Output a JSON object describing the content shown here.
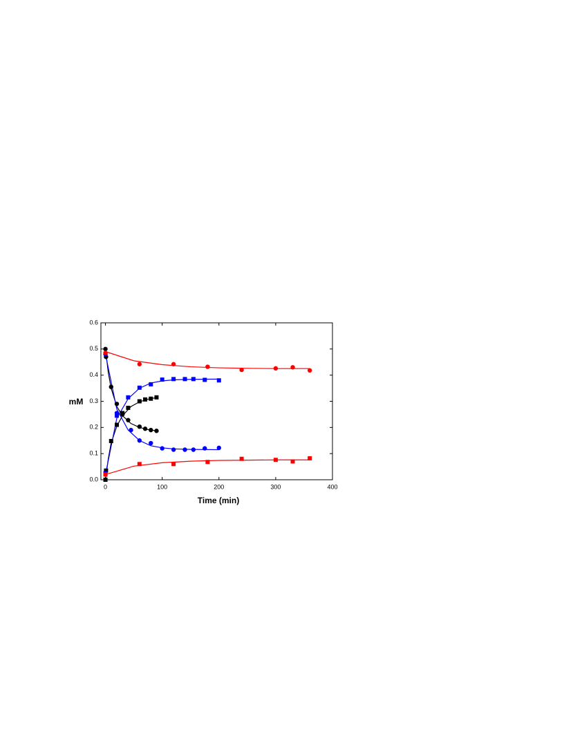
{
  "chart_data": {
    "type": "scatter",
    "x_label": "Time (min)",
    "y_label": "mM",
    "xlim": [
      -8,
      400
    ],
    "xticks": [
      0,
      100,
      200,
      300,
      400
    ],
    "ylim": [
      0,
      0.6
    ],
    "yticks": [
      {
        "value": 0,
        "label": "0.0"
      },
      0.1,
      0.2,
      0.3,
      0.4,
      0.5,
      0.6
    ],
    "series": [
      {
        "color": "#000000",
        "marker": "circle",
        "x": [
          0,
          1,
          10,
          20,
          30,
          40,
          60,
          70,
          80,
          90
        ],
        "values": [
          0.5,
          0.47,
          0.355,
          0.29,
          0.25,
          0.228,
          0.203,
          0.195,
          0.19,
          0.187
        ]
      },
      {
        "color": "#000000",
        "marker": "square",
        "x": [
          0,
          1,
          10,
          20,
          30,
          40,
          60,
          70,
          80,
          90
        ],
        "values": [
          0,
          0.035,
          0.148,
          0.21,
          0.255,
          0.275,
          0.3,
          0.307,
          0.31,
          0.315
        ]
      },
      {
        "color": "#0000ff",
        "marker": "circle",
        "x": [
          0,
          20,
          45,
          60,
          80,
          100,
          120,
          140,
          155,
          175,
          200
        ],
        "values": [
          0.48,
          0.255,
          0.19,
          0.15,
          0.14,
          0.12,
          0.115,
          0.115,
          0.115,
          0.12,
          0.122
        ]
      },
      {
        "color": "#0000ff",
        "marker": "square",
        "x": [
          0,
          20,
          40,
          60,
          80,
          100,
          120,
          140,
          155,
          175,
          200
        ],
        "values": [
          0.025,
          0.245,
          0.315,
          0.352,
          0.365,
          0.383,
          0.385,
          0.385,
          0.385,
          0.382,
          0.38
        ]
      },
      {
        "color": "#ff0000",
        "marker": "circle",
        "x": [
          0,
          60,
          120,
          180,
          240,
          300,
          330,
          360
        ],
        "values": [
          0.485,
          0.442,
          0.442,
          0.432,
          0.42,
          0.426,
          0.43,
          0.418
        ]
      },
      {
        "color": "#ff0000",
        "marker": "square",
        "x": [
          0,
          60,
          120,
          180,
          240,
          300,
          330,
          360
        ],
        "values": [
          0.02,
          0.06,
          0.06,
          0.068,
          0.08,
          0.076,
          0.07,
          0.082
        ]
      },
      {
        "color": "#000000",
        "marker": "line",
        "x": [
          0,
          5,
          10,
          20,
          30,
          45,
          60,
          75,
          90
        ],
        "values": [
          0.5,
          0.41,
          0.35,
          0.28,
          0.245,
          0.215,
          0.2,
          0.192,
          0.187
        ]
      },
      {
        "color": "#000000",
        "marker": "line",
        "x": [
          0,
          5,
          10,
          20,
          30,
          45,
          60,
          75,
          90
        ],
        "values": [
          0,
          0.08,
          0.14,
          0.205,
          0.245,
          0.28,
          0.298,
          0.308,
          0.314
        ]
      },
      {
        "color": "#0000ff",
        "marker": "line",
        "x": [
          0,
          20,
          40,
          60,
          80,
          100,
          120,
          150,
          200
        ],
        "values": [
          0.48,
          0.27,
          0.19,
          0.15,
          0.13,
          0.122,
          0.118,
          0.116,
          0.115
        ]
      },
      {
        "color": "#0000ff",
        "marker": "line",
        "x": [
          0,
          20,
          40,
          60,
          80,
          100,
          120,
          150,
          200
        ],
        "values": [
          0.02,
          0.235,
          0.31,
          0.35,
          0.37,
          0.378,
          0.382,
          0.384,
          0.385
        ]
      },
      {
        "color": "#ff0000",
        "marker": "line",
        "x": [
          0,
          50,
          100,
          150,
          200,
          250,
          300,
          360
        ],
        "values": [
          0.49,
          0.455,
          0.44,
          0.432,
          0.428,
          0.426,
          0.425,
          0.425
        ]
      },
      {
        "color": "#ff0000",
        "marker": "line",
        "x": [
          0,
          50,
          100,
          150,
          200,
          250,
          300,
          360
        ],
        "values": [
          0.02,
          0.052,
          0.065,
          0.071,
          0.074,
          0.075,
          0.076,
          0.076
        ]
      }
    ]
  }
}
